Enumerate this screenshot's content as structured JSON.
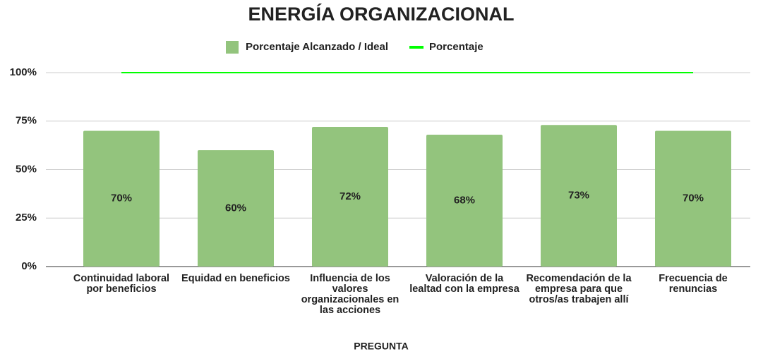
{
  "chart_data": {
    "type": "bar",
    "title": "ENERGÍA ORGANIZACIONAL",
    "x_label": "PREGUNTA",
    "categories": [
      "Continuidad laboral por beneficios",
      "Equidad en beneficios",
      "Influencia de los valores organizacionales en las acciones",
      "Valoración de la lealtad con la empresa",
      "Recomendación de la empresa para que otros/as trabajen allí",
      "Frecuencia de renuncias"
    ],
    "series": [
      {
        "name": "Porcentaje Alcanzado / Ideal",
        "type": "bar",
        "color": "#93c47d",
        "values": [
          70,
          60,
          72,
          68,
          73,
          70
        ],
        "value_labels": [
          "70%",
          "60%",
          "72%",
          "68%",
          "73%",
          "70%"
        ]
      },
      {
        "name": "Porcentaje",
        "type": "line",
        "color": "#00ff00",
        "values": [
          100,
          100,
          100,
          100,
          100,
          100
        ]
      }
    ],
    "ylim": [
      0,
      100
    ],
    "yticks": [
      {
        "value": 0,
        "label": "0%"
      },
      {
        "value": 25,
        "label": "25%"
      },
      {
        "value": 50,
        "label": "50%"
      },
      {
        "value": 75,
        "label": "75%"
      },
      {
        "value": 100,
        "label": "100%"
      }
    ],
    "grid": true,
    "legend": "top"
  }
}
